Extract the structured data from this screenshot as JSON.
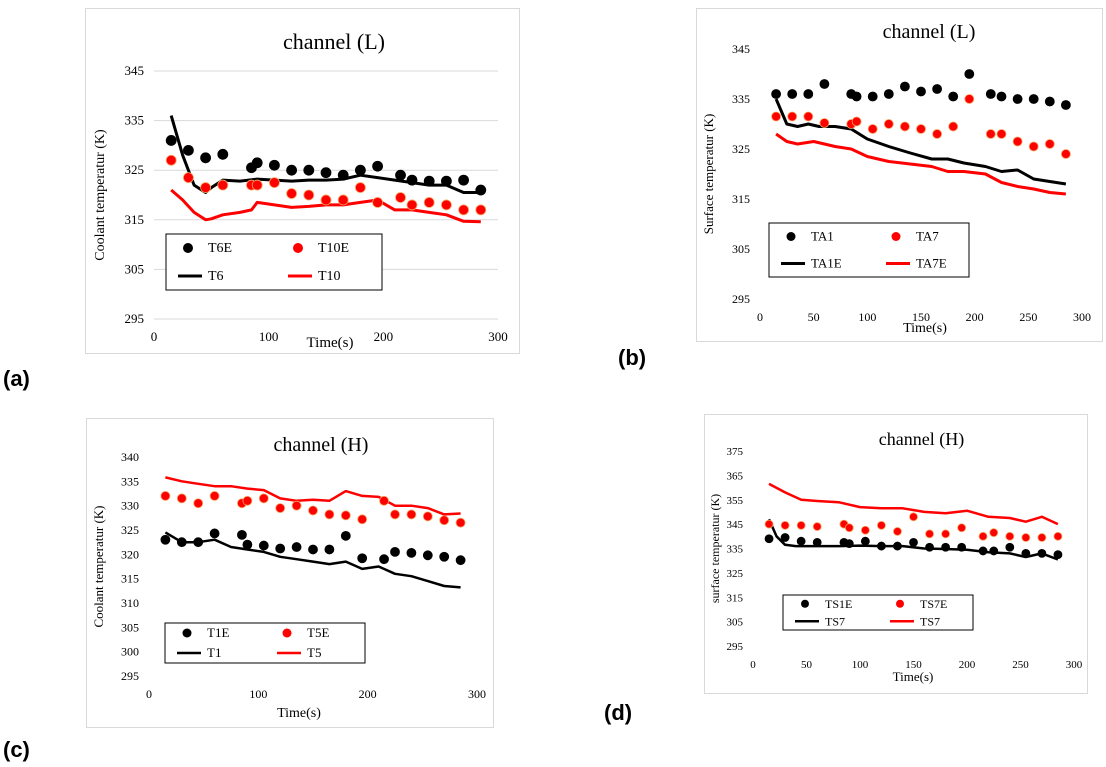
{
  "panel_labels": {
    "a": "(a)",
    "b": "(b)",
    "c": "(c)",
    "d": "(d)"
  },
  "chart_data": [
    {
      "id": "a",
      "type": "line",
      "title": "channel (L)",
      "xlabel": "Time(s)",
      "ylabel": "Coolant temperatur (K)",
      "xlim": [
        0,
        300
      ],
      "ylim": [
        295,
        345
      ],
      "xticks": [
        "0",
        "100",
        "200",
        "300"
      ],
      "yticks": [
        "295",
        "305",
        "315",
        "325",
        "335",
        "345"
      ],
      "grid": true,
      "legend_position": "bottom-left",
      "series": [
        {
          "name": "T6E",
          "kind": "scatter",
          "color": "#000000",
          "x": [
            15,
            30,
            45,
            60,
            85,
            90,
            105,
            120,
            135,
            150,
            165,
            180,
            195,
            215,
            225,
            240,
            255,
            270,
            285
          ],
          "y": [
            331,
            329,
            327.5,
            328.2,
            325.5,
            326.5,
            326,
            325,
            325,
            324.5,
            324,
            325,
            325.8,
            324,
            323,
            322.8,
            322.8,
            323,
            321
          ]
        },
        {
          "name": "T10E",
          "kind": "scatter",
          "color": "#ff0000",
          "x": [
            15,
            30,
            45,
            60,
            85,
            90,
            105,
            120,
            135,
            150,
            165,
            180,
            195,
            215,
            225,
            240,
            255,
            270,
            285
          ],
          "y": [
            327,
            323.5,
            321.5,
            322,
            322,
            322,
            322.5,
            320.3,
            320,
            319,
            319,
            321.5,
            318.5,
            319.5,
            318,
            318.5,
            318,
            317,
            317
          ]
        },
        {
          "name": "T6",
          "kind": "line",
          "color": "#000000",
          "x": [
            15,
            25,
            35,
            45,
            50,
            60,
            75,
            90,
            105,
            120,
            135,
            150,
            165,
            180,
            195,
            210,
            225,
            240,
            255,
            270,
            285
          ],
          "y": [
            336,
            328,
            322,
            320.5,
            321.5,
            323,
            322.8,
            323.2,
            323,
            322.8,
            323,
            323,
            323.2,
            324,
            323.5,
            323,
            322.5,
            322,
            322,
            320.5,
            320.5
          ]
        },
        {
          "name": "T10",
          "kind": "line",
          "color": "#ff0000",
          "x": [
            15,
            25,
            35,
            45,
            50,
            60,
            75,
            85,
            90,
            105,
            120,
            135,
            150,
            165,
            180,
            195,
            210,
            225,
            240,
            255,
            270,
            285
          ],
          "y": [
            321,
            319,
            316.5,
            315,
            315.2,
            316,
            316.5,
            317,
            318.5,
            318,
            317.5,
            317.7,
            318,
            318,
            318.5,
            319,
            317,
            317,
            316.5,
            316,
            314.7,
            314.6
          ]
        }
      ]
    },
    {
      "id": "b",
      "type": "line",
      "title": "channel (L)",
      "xlabel": "Time(s)",
      "ylabel": "Surface temperatur (K)",
      "xlim": [
        0,
        300
      ],
      "ylim": [
        295,
        345
      ],
      "xticks": [
        "0",
        "50",
        "100",
        "150",
        "200",
        "250",
        "300"
      ],
      "yticks": [
        "295",
        "305",
        "315",
        "325",
        "335",
        "345"
      ],
      "grid": false,
      "legend_position": "bottom-left",
      "series": [
        {
          "name": "TA1",
          "kind": "scatter",
          "color": "#000000",
          "x": [
            15,
            30,
            45,
            60,
            85,
            90,
            105,
            120,
            135,
            150,
            165,
            180,
            195,
            215,
            225,
            240,
            255,
            270,
            285
          ],
          "y": [
            336,
            336,
            336,
            338,
            336,
            335.5,
            335.5,
            336,
            337.5,
            336.5,
            337,
            335.5,
            340,
            336,
            335.5,
            335,
            335,
            334.5,
            333.8
          ]
        },
        {
          "name": "TA7",
          "kind": "scatter",
          "color": "#ff0000",
          "x": [
            15,
            30,
            45,
            60,
            85,
            90,
            105,
            120,
            135,
            150,
            165,
            180,
            195,
            215,
            225,
            240,
            255,
            270,
            285
          ],
          "y": [
            331.5,
            331.5,
            331.5,
            330.2,
            330,
            330.5,
            329,
            330,
            329.5,
            329,
            328,
            329.5,
            335,
            328,
            328,
            326.5,
            325.5,
            326,
            324
          ]
        },
        {
          "name": "TA1E",
          "kind": "line",
          "color": "#000000",
          "x": [
            15,
            25,
            35,
            45,
            55,
            70,
            85,
            100,
            120,
            140,
            160,
            175,
            190,
            210,
            225,
            240,
            255,
            270,
            285
          ],
          "y": [
            335,
            330,
            329.5,
            330,
            329.5,
            329.5,
            329,
            327,
            325.5,
            324.2,
            323,
            323,
            322.2,
            321.5,
            320.5,
            320.8,
            319,
            318.5,
            318
          ]
        },
        {
          "name": "TA7E",
          "kind": "line",
          "color": "#ff0000",
          "x": [
            15,
            25,
            35,
            50,
            70,
            85,
            100,
            120,
            140,
            160,
            175,
            190,
            210,
            225,
            240,
            255,
            270,
            285
          ],
          "y": [
            328,
            326.5,
            326,
            326.5,
            325.5,
            325,
            323.5,
            322.5,
            322,
            321.5,
            320.5,
            320.5,
            320,
            318.3,
            317.5,
            317,
            316.3,
            316
          ]
        }
      ]
    },
    {
      "id": "c",
      "type": "line",
      "title": "channel (H)",
      "xlabel": "Time(s)",
      "ylabel": "Coolant temperatur (K)",
      "xlim": [
        0,
        300
      ],
      "ylim": [
        295,
        340
      ],
      "xticks": [
        "0",
        "100",
        "200",
        "300"
      ],
      "yticks": [
        "295",
        "300",
        "305",
        "310",
        "315",
        "320",
        "325",
        "330",
        "335",
        "340"
      ],
      "grid": false,
      "legend_position": "bottom-left",
      "series": [
        {
          "name": "T1E",
          "kind": "scatter",
          "color": "#000000",
          "x": [
            15,
            30,
            45,
            60,
            85,
            90,
            105,
            120,
            135,
            150,
            165,
            180,
            195,
            215,
            225,
            240,
            255,
            270,
            285
          ],
          "y": [
            323,
            322.5,
            322.5,
            324.3,
            324,
            322,
            321.8,
            321.2,
            321.5,
            321,
            321,
            323.8,
            319.2,
            319,
            320.5,
            320.3,
            319.8,
            319.5,
            318.8
          ]
        },
        {
          "name": "T5E",
          "kind": "scatter",
          "color": "#ff0000",
          "x": [
            15,
            30,
            45,
            60,
            85,
            90,
            105,
            120,
            135,
            150,
            165,
            180,
            195,
            215,
            225,
            240,
            255,
            270,
            285
          ],
          "y": [
            332,
            331.5,
            330.5,
            332,
            330.5,
            331,
            331.5,
            329.5,
            330,
            329,
            328.2,
            328,
            327.2,
            331,
            328.2,
            328.2,
            327.8,
            327,
            326.5
          ]
        },
        {
          "name": "T1",
          "kind": "line",
          "color": "#000000",
          "x": [
            15,
            30,
            45,
            60,
            75,
            90,
            105,
            120,
            135,
            150,
            165,
            180,
            195,
            210,
            225,
            240,
            255,
            270,
            285
          ],
          "y": [
            324.5,
            322.5,
            322.5,
            323,
            321.5,
            321,
            320.5,
            319.5,
            319,
            318.5,
            318,
            318.5,
            317,
            317.5,
            316,
            315.5,
            314.5,
            313.5,
            313.2
          ]
        },
        {
          "name": "T5",
          "kind": "line",
          "color": "#ff0000",
          "x": [
            15,
            30,
            45,
            60,
            75,
            90,
            105,
            120,
            135,
            150,
            165,
            180,
            195,
            210,
            225,
            240,
            255,
            270,
            285
          ],
          "y": [
            335.8,
            335,
            334.5,
            334,
            334,
            333.5,
            333.2,
            331.5,
            331,
            331.2,
            331,
            333,
            332,
            331.8,
            330,
            330,
            329.5,
            328.2,
            328.4
          ]
        }
      ]
    },
    {
      "id": "d",
      "type": "line",
      "title": "channel (H)",
      "xlabel": "Time(s)",
      "ylabel": "surface temperatur (K)",
      "xlim": [
        0,
        300
      ],
      "ylim": [
        295,
        375
      ],
      "xticks": [
        "0",
        "50",
        "100",
        "150",
        "200",
        "250",
        "300"
      ],
      "yticks": [
        "295",
        "305",
        "315",
        "325",
        "335",
        "345",
        "355",
        "365",
        "375"
      ],
      "grid": false,
      "legend_position": "bottom-left",
      "series": [
        {
          "name": "TS1E",
          "kind": "scatter",
          "color": "#000000",
          "x": [
            15,
            30,
            45,
            60,
            85,
            90,
            105,
            120,
            135,
            150,
            165,
            180,
            195,
            215,
            225,
            240,
            255,
            270,
            285
          ],
          "y": [
            339,
            339.5,
            338,
            337.5,
            337.5,
            337,
            338,
            336,
            336,
            337.5,
            335.5,
            335.5,
            335.5,
            334,
            334,
            335.5,
            333,
            333,
            332.5
          ]
        },
        {
          "name": "TS7E",
          "kind": "scatter",
          "color": "#ff0000",
          "x": [
            15,
            30,
            45,
            60,
            85,
            90,
            105,
            120,
            135,
            150,
            165,
            180,
            195,
            215,
            225,
            240,
            255,
            270,
            285
          ],
          "y": [
            345,
            344.5,
            344.5,
            344,
            345,
            343.5,
            342.5,
            344.5,
            342,
            348,
            341,
            341,
            343.5,
            340,
            341.5,
            340,
            339.5,
            339.5,
            340
          ]
        },
        {
          "name": "TS7",
          "kind": "line",
          "color": "#000000",
          "x": [
            15,
            22,
            30,
            40,
            60,
            80,
            100,
            120,
            140,
            160,
            180,
            200,
            220,
            240,
            255,
            270,
            285
          ],
          "y": [
            347,
            340,
            336.5,
            336,
            336,
            336,
            336.2,
            336,
            336,
            335,
            334.8,
            334.5,
            333.5,
            333,
            331.5,
            333,
            330.5
          ]
        },
        {
          "name": "TS7",
          "kind": "line",
          "color": "#ff0000",
          "x": [
            15,
            30,
            45,
            60,
            80,
            100,
            120,
            140,
            160,
            180,
            200,
            220,
            240,
            255,
            270,
            285
          ],
          "y": [
            361.5,
            358,
            355,
            354.5,
            354,
            352,
            351.5,
            351.5,
            350,
            349.5,
            350.5,
            348,
            347.5,
            346,
            348,
            345
          ]
        }
      ]
    }
  ]
}
